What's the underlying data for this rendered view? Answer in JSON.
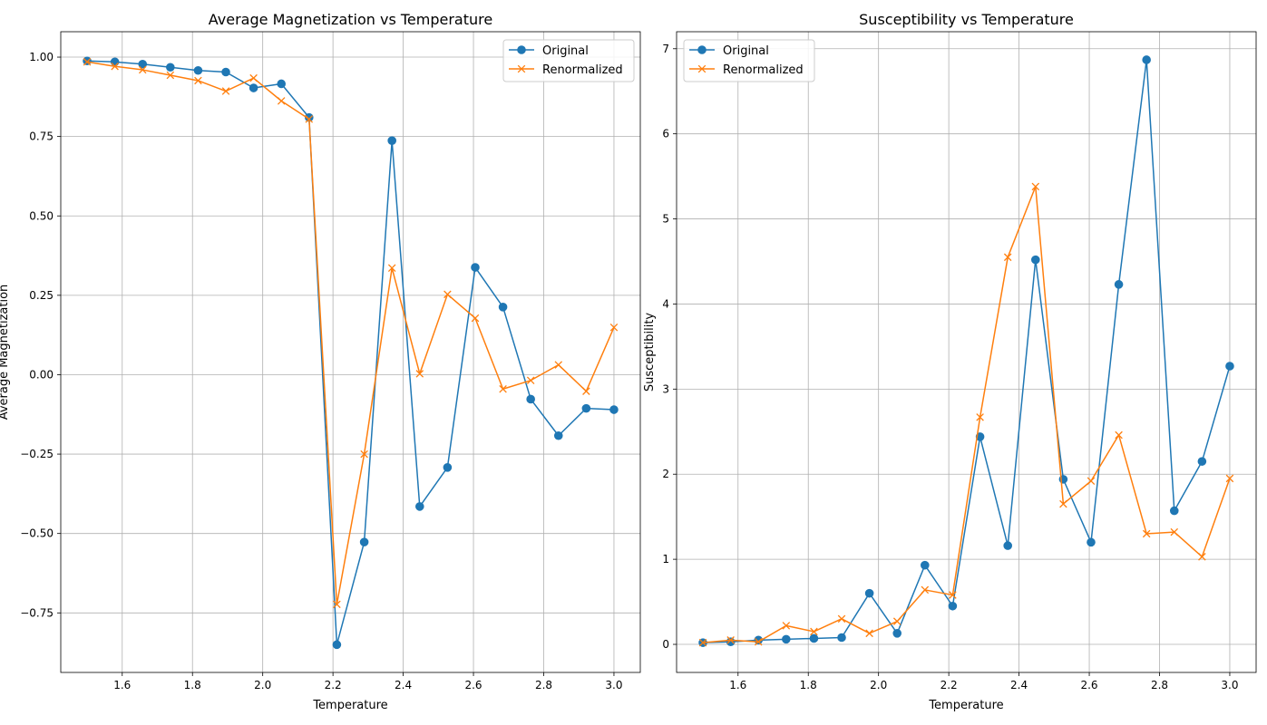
{
  "colors": {
    "original": "#1f77b4",
    "renormalized": "#ff7f0e",
    "grid": "#b0b0b0",
    "legend_border": "#cccccc"
  },
  "chart_data": [
    {
      "type": "line",
      "title": "Average Magnetization vs Temperature",
      "xlabel": "Temperature",
      "ylabel": "Average Magnetization",
      "xlim": [
        1.425,
        3.075
      ],
      "ylim": [
        -0.9375,
        1.08
      ],
      "xticks": [
        1.6,
        1.8,
        2.0,
        2.2,
        2.4,
        2.6,
        2.8,
        3.0
      ],
      "xtick_labels": [
        "1.6",
        "1.8",
        "2.0",
        "2.2",
        "2.4",
        "2.6",
        "2.8",
        "3.0"
      ],
      "yticks": [
        -0.75,
        -0.5,
        -0.25,
        0.0,
        0.25,
        0.5,
        0.75,
        1.0
      ],
      "ytick_labels": [
        "−0.75",
        "−0.50",
        "−0.25",
        "0.00",
        "0.25",
        "0.50",
        "0.75",
        "1.00"
      ],
      "grid": true,
      "legend_loc": "upper right",
      "x": [
        1.5,
        1.579,
        1.658,
        1.737,
        1.816,
        1.895,
        1.974,
        2.053,
        2.132,
        2.211,
        2.289,
        2.368,
        2.447,
        2.526,
        2.605,
        2.684,
        2.763,
        2.842,
        2.921,
        3.0
      ],
      "series": [
        {
          "name": "Original",
          "marker": "o",
          "values": [
            0.988,
            0.985,
            0.978,
            0.968,
            0.958,
            0.953,
            0.903,
            0.916,
            0.81,
            -0.85,
            -0.527,
            0.737,
            -0.415,
            -0.292,
            0.338,
            0.213,
            -0.077,
            -0.192,
            -0.106,
            -0.11
          ]
        },
        {
          "name": "Renormalized",
          "marker": "x",
          "values": [
            0.985,
            0.971,
            0.96,
            0.943,
            0.926,
            0.893,
            0.934,
            0.862,
            0.805,
            -0.723,
            -0.25,
            0.336,
            0.003,
            0.253,
            0.178,
            -0.045,
            -0.018,
            0.031,
            -0.052,
            0.149
          ]
        }
      ]
    },
    {
      "type": "line",
      "title": "Susceptibility vs Temperature",
      "xlabel": "Temperature",
      "ylabel": "Susceptibility",
      "xlim": [
        1.425,
        3.075
      ],
      "ylim": [
        -0.33,
        7.2
      ],
      "xticks": [
        1.6,
        1.8,
        2.0,
        2.2,
        2.4,
        2.6,
        2.8,
        3.0
      ],
      "xtick_labels": [
        "1.6",
        "1.8",
        "2.0",
        "2.2",
        "2.4",
        "2.6",
        "2.8",
        "3.0"
      ],
      "yticks": [
        0,
        1,
        2,
        3,
        4,
        5,
        6,
        7
      ],
      "ytick_labels": [
        "0",
        "1",
        "2",
        "3",
        "4",
        "5",
        "6",
        "7"
      ],
      "grid": true,
      "legend_loc": "upper left",
      "x": [
        1.5,
        1.579,
        1.658,
        1.737,
        1.816,
        1.895,
        1.974,
        2.053,
        2.132,
        2.211,
        2.289,
        2.368,
        2.447,
        2.526,
        2.605,
        2.684,
        2.763,
        2.842,
        2.921,
        3.0
      ],
      "series": [
        {
          "name": "Original",
          "marker": "o",
          "values": [
            0.02,
            0.03,
            0.05,
            0.06,
            0.07,
            0.08,
            0.6,
            0.13,
            0.93,
            0.45,
            2.44,
            1.16,
            4.52,
            1.94,
            1.2,
            4.23,
            6.87,
            1.57,
            2.15,
            3.27
          ]
        },
        {
          "name": "Renormalized",
          "marker": "x",
          "values": [
            0.02,
            0.05,
            0.03,
            0.22,
            0.15,
            0.3,
            0.13,
            0.27,
            0.64,
            0.58,
            2.67,
            4.55,
            5.38,
            1.65,
            1.92,
            2.46,
            1.3,
            1.32,
            1.03,
            1.95
          ]
        }
      ]
    }
  ]
}
